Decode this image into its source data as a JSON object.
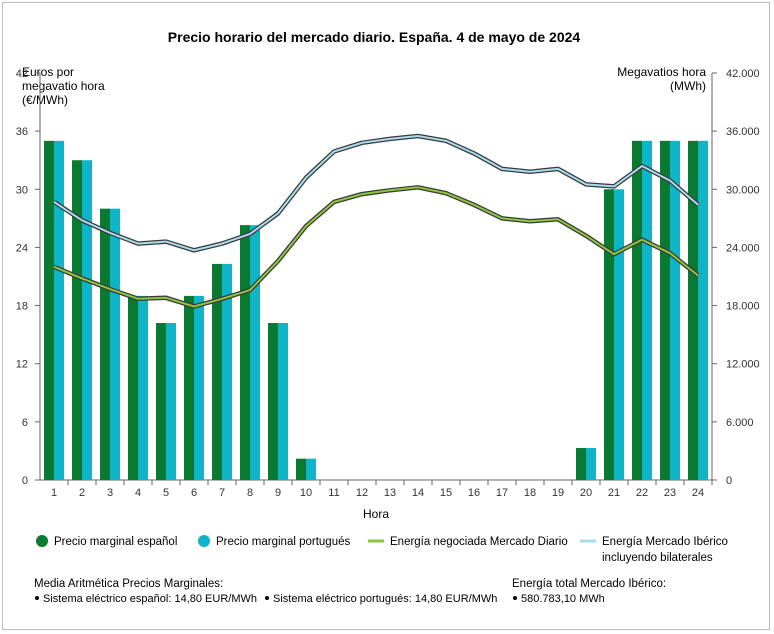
{
  "chart_data": {
    "type": "bar",
    "title": "Precio horario del mercado diario. España. 4 de mayo de 2024",
    "xlabel": "Hora",
    "ylabel_left": [
      "Euros por",
      "megavatio hora",
      "(€/MWh)"
    ],
    "ylabel_right": [
      "Megavatios hora",
      "(MWh)"
    ],
    "categories": [
      "1",
      "2",
      "3",
      "4",
      "5",
      "6",
      "7",
      "8",
      "9",
      "10",
      "11",
      "12",
      "13",
      "14",
      "15",
      "16",
      "17",
      "18",
      "19",
      "20",
      "21",
      "22",
      "23",
      "24"
    ],
    "y_left_ticks": [
      "0",
      "6",
      "12",
      "18",
      "24",
      "30",
      "36",
      "42"
    ],
    "y_right_ticks": [
      "0",
      "6.000",
      "12.000",
      "18.000",
      "24.000",
      "30.000",
      "36.000",
      "42.000"
    ],
    "ylim_left": [
      0,
      42
    ],
    "ylim_right": [
      0,
      42000
    ],
    "series": [
      {
        "name": "Precio marginal español",
        "axis": "left",
        "kind": "bar",
        "color": "#0a7a32",
        "values": [
          35,
          33,
          28,
          19,
          16.2,
          19,
          22.3,
          26.3,
          16.2,
          2.2,
          0,
          0,
          0,
          0,
          0,
          0,
          0,
          0,
          0,
          3.3,
          30,
          35,
          35,
          35
        ]
      },
      {
        "name": "Precio marginal portugués",
        "axis": "left",
        "kind": "bar",
        "color": "#0fb5c6",
        "values": [
          35,
          33,
          28,
          19,
          16.2,
          19,
          22.3,
          26.3,
          16.2,
          2.2,
          0,
          0,
          0,
          0,
          0,
          0,
          0,
          0,
          0,
          3.3,
          30,
          35,
          35,
          35
        ]
      },
      {
        "name": "Energía negociada Mercado Diario",
        "axis": "right",
        "kind": "line",
        "color": "#8cc63f",
        "values": [
          22000,
          20800,
          19700,
          18700,
          18800,
          17900,
          18700,
          19600,
          22600,
          26200,
          28700,
          29500,
          29900,
          30200,
          29600,
          28400,
          27000,
          26700,
          26900,
          25200,
          23300,
          24800,
          23400,
          21100
        ]
      },
      {
        "name": "Energía Mercado Ibérico incluyendo bilaterales",
        "axis": "right",
        "kind": "line",
        "color": "#a9dcef",
        "values": [
          28700,
          26800,
          25500,
          24400,
          24600,
          23700,
          24400,
          25400,
          27500,
          31200,
          33900,
          34800,
          35200,
          35500,
          35000,
          33700,
          32100,
          31800,
          32100,
          30500,
          30300,
          32400,
          30900,
          28400
        ]
      }
    ],
    "legend": [
      {
        "label": "Precio marginal español",
        "marker": "circle",
        "color": "#0a7a32"
      },
      {
        "label": "Precio marginal portugués",
        "marker": "circle",
        "color": "#0fb5c6"
      },
      {
        "label": "Energía negociada Mercado Diario",
        "marker": "line",
        "color": "#8cc63f"
      },
      {
        "label": "Energía Mercado Ibérico",
        "label2": "incluyendo bilaterales",
        "marker": "line",
        "color": "#a9dcef"
      }
    ],
    "legend_position": "bottom",
    "grid": false
  },
  "footer": {
    "media_title": "Media Aritmética Precios Marginales:",
    "media_es": "Sistema eléctrico español: 14,80 EUR/MWh",
    "media_pt": "Sistema eléctrico portugués: 14,80 EUR/MWh",
    "energia_title": "Energía total Mercado Ibérico:",
    "energia_value": "580.783,10 MWh"
  }
}
